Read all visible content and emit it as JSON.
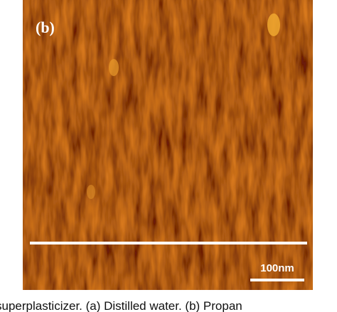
{
  "figure": {
    "panel_label": "(b)",
    "scale_bar_label": "100nm",
    "caption": "superplasticizer. (a) Distilled water. (b) Propan"
  }
}
